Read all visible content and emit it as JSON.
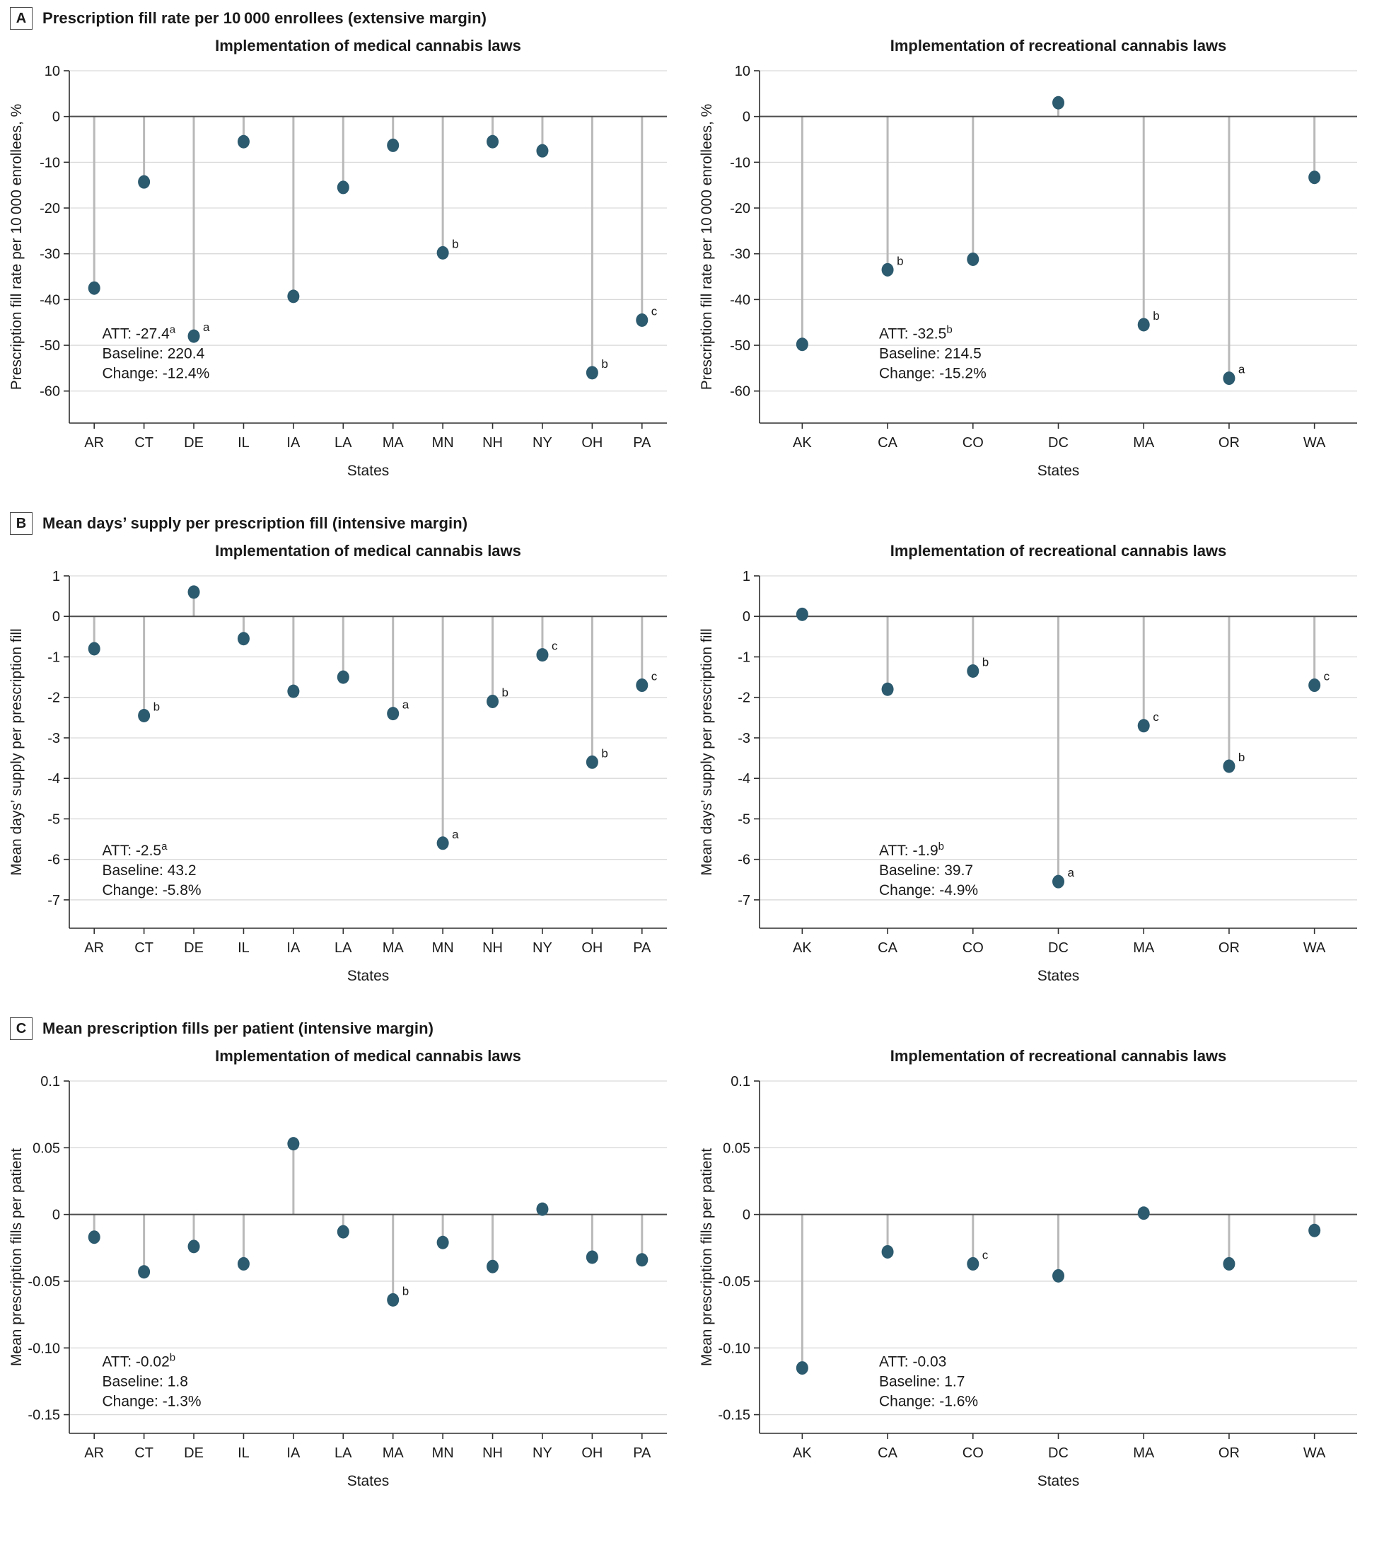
{
  "figure": {
    "sections": [
      {
        "label": "A",
        "heading": "Prescription fill rate per 10 000 enrollees (extensive margin)"
      },
      {
        "label": "B",
        "heading": "Mean days’ supply per prescription fill (intensive margin)"
      },
      {
        "label": "C",
        "heading": "Mean prescription fills per patient (intensive margin)"
      }
    ]
  },
  "colors": {
    "dot": "#2c5a6e",
    "stem": "#b9b9b9",
    "grid": "#d9d9d9",
    "zero_line": "#4d4d4d",
    "spine": "#2f2f2f",
    "text": "#1a1a1a"
  },
  "chart_data": [
    {
      "type": "lollipop",
      "panel": "A",
      "title": "Implementation of medical cannabis laws",
      "ylabel": "Prescription fill rate per 10 000 enrollees, %",
      "xlabel": "States",
      "ytick_labels": [
        "10",
        "0",
        "-10",
        "-20",
        "-30",
        "-40",
        "-50",
        "-60"
      ],
      "ytick_values": [
        10,
        0,
        -10,
        -20,
        -30,
        -40,
        -50,
        -60
      ],
      "ymax": 10,
      "ymin": -67,
      "categories": [
        "AR",
        "CT",
        "DE",
        "IL",
        "IA",
        "LA",
        "MA",
        "MN",
        "NH",
        "NY",
        "OH",
        "PA"
      ],
      "values": [
        -37.5,
        -14.3,
        -48.0,
        -5.5,
        -39.3,
        -15.5,
        -6.3,
        -29.8,
        -5.5,
        -7.5,
        -56.0,
        -44.5
      ],
      "letters": [
        "",
        "",
        "a",
        "",
        "",
        "",
        "",
        "b",
        "",
        "",
        "b",
        "c"
      ],
      "annotation": {
        "x_frac": 0.055,
        "y_value": -48.5,
        "lines": [
          {
            "text": "ATT: -27.4",
            "sup": "a"
          },
          {
            "text": "Baseline: 220.4",
            "sup": ""
          },
          {
            "text": "Change: -12.4%",
            "sup": ""
          }
        ]
      }
    },
    {
      "type": "lollipop",
      "panel": "A",
      "title": "Implementation of recreational cannabis laws",
      "ylabel": "Prescription fill rate per 10 000 enrollees, %",
      "xlabel": "States",
      "ytick_labels": [
        "10",
        "0",
        "-10",
        "-20",
        "-30",
        "-40",
        "-50",
        "-60"
      ],
      "ytick_values": [
        10,
        0,
        -10,
        -20,
        -30,
        -40,
        -50,
        -60
      ],
      "ymax": 10,
      "ymin": -67,
      "categories": [
        "AK",
        "CA",
        "CO",
        "DC",
        "MA",
        "OR",
        "WA"
      ],
      "values": [
        -49.8,
        -33.5,
        -31.2,
        3.0,
        -45.5,
        -57.2,
        -13.3
      ],
      "letters": [
        "",
        "b",
        "",
        "",
        "b",
        "a",
        ""
      ],
      "annotation": {
        "x_frac": 0.2,
        "y_value": -48.5,
        "lines": [
          {
            "text": "ATT: -32.5",
            "sup": "b"
          },
          {
            "text": "Baseline: 214.5",
            "sup": ""
          },
          {
            "text": "Change: -15.2%",
            "sup": ""
          }
        ]
      }
    },
    {
      "type": "lollipop",
      "panel": "B",
      "title": "Implementation of medical cannabis laws",
      "ylabel": "Mean days’ supply per prescription fill",
      "xlabel": "States",
      "ytick_labels": [
        "1",
        "0",
        "-1",
        "-2",
        "-3",
        "-4",
        "-5",
        "-6",
        "-7"
      ],
      "ytick_values": [
        1,
        0,
        -1,
        -2,
        -3,
        -4,
        -5,
        -6,
        -7
      ],
      "ymax": 1,
      "ymin": -7.7,
      "categories": [
        "AR",
        "CT",
        "DE",
        "IL",
        "IA",
        "LA",
        "MA",
        "MN",
        "NH",
        "NY",
        "OH",
        "PA"
      ],
      "values": [
        -0.8,
        -2.45,
        0.6,
        -0.55,
        -1.85,
        -1.5,
        -2.4,
        -5.6,
        -2.1,
        -0.95,
        -3.6,
        -1.7
      ],
      "letters": [
        "",
        "b",
        "",
        "",
        "",
        "",
        "a",
        "a",
        "b",
        "c",
        "b",
        "c"
      ],
      "annotation": {
        "x_frac": 0.055,
        "y_value": -5.9,
        "lines": [
          {
            "text": "ATT: -2.5",
            "sup": "a"
          },
          {
            "text": "Baseline: 43.2",
            "sup": ""
          },
          {
            "text": "Change: -5.8%",
            "sup": ""
          }
        ]
      }
    },
    {
      "type": "lollipop",
      "panel": "B",
      "title": "Implementation of recreational cannabis laws",
      "ylabel": "Mean days’ supply per prescription fill",
      "xlabel": "States",
      "ytick_labels": [
        "1",
        "0",
        "-1",
        "-2",
        "-3",
        "-4",
        "-5",
        "-6",
        "-7"
      ],
      "ytick_values": [
        1,
        0,
        -1,
        -2,
        -3,
        -4,
        -5,
        -6,
        -7
      ],
      "ymax": 1,
      "ymin": -7.7,
      "categories": [
        "AK",
        "CA",
        "CO",
        "DC",
        "MA",
        "OR",
        "WA"
      ],
      "values": [
        0.05,
        -1.8,
        -1.35,
        -6.55,
        -2.7,
        -3.7,
        -1.7
      ],
      "letters": [
        "",
        "",
        "b",
        "a",
        "c",
        "b",
        "c"
      ],
      "annotation": {
        "x_frac": 0.2,
        "y_value": -5.9,
        "lines": [
          {
            "text": "ATT: -1.9",
            "sup": "b"
          },
          {
            "text": "Baseline: 39.7",
            "sup": ""
          },
          {
            "text": "Change: -4.9%",
            "sup": ""
          }
        ]
      }
    },
    {
      "type": "lollipop",
      "panel": "C",
      "title": "Implementation of medical cannabis laws",
      "ylabel": "Mean prescription fills per patient",
      "xlabel": "States",
      "ytick_labels": [
        "0.1",
        "0.05",
        "0",
        "-0.05",
        "-0.10",
        "-0.15"
      ],
      "ytick_values": [
        0.1,
        0.05,
        0,
        -0.05,
        -0.1,
        -0.15
      ],
      "ymax": 0.1,
      "ymin": -0.164,
      "categories": [
        "AR",
        "CT",
        "DE",
        "IL",
        "IA",
        "LA",
        "MA",
        "MN",
        "NH",
        "NY",
        "OH",
        "PA"
      ],
      "values": [
        -0.017,
        -0.043,
        -0.024,
        -0.037,
        0.053,
        -0.013,
        -0.064,
        -0.021,
        -0.039,
        0.004,
        -0.032,
        -0.034
      ],
      "letters": [
        "",
        "",
        "",
        "",
        "",
        "",
        "b",
        "",
        "",
        "",
        "",
        ""
      ],
      "annotation": {
        "x_frac": 0.055,
        "y_value": -0.114,
        "lines": [
          {
            "text": "ATT: -0.02",
            "sup": "b"
          },
          {
            "text": "Baseline: 1.8",
            "sup": ""
          },
          {
            "text": "Change: -1.3%",
            "sup": ""
          }
        ]
      }
    },
    {
      "type": "lollipop",
      "panel": "C",
      "title": "Implementation of recreational cannabis laws",
      "ylabel": "Mean prescription fills per patient",
      "xlabel": "States",
      "ytick_labels": [
        "0.1",
        "0.05",
        "0",
        "-0.05",
        "-0.10",
        "-0.15"
      ],
      "ytick_values": [
        0.1,
        0.05,
        0,
        -0.05,
        -0.1,
        -0.15
      ],
      "ymax": 0.1,
      "ymin": -0.164,
      "categories": [
        "AK",
        "CA",
        "CO",
        "DC",
        "MA",
        "OR",
        "WA"
      ],
      "values": [
        -0.115,
        -0.028,
        -0.037,
        -0.046,
        0.001,
        -0.037,
        -0.012
      ],
      "letters": [
        "",
        "",
        "c",
        "",
        "",
        "",
        ""
      ],
      "annotation": {
        "x_frac": 0.2,
        "y_value": -0.114,
        "lines": [
          {
            "text": "ATT: -0.03",
            "sup": ""
          },
          {
            "text": "Baseline: 1.7",
            "sup": ""
          },
          {
            "text": "Change: -1.6%",
            "sup": ""
          }
        ]
      }
    }
  ]
}
